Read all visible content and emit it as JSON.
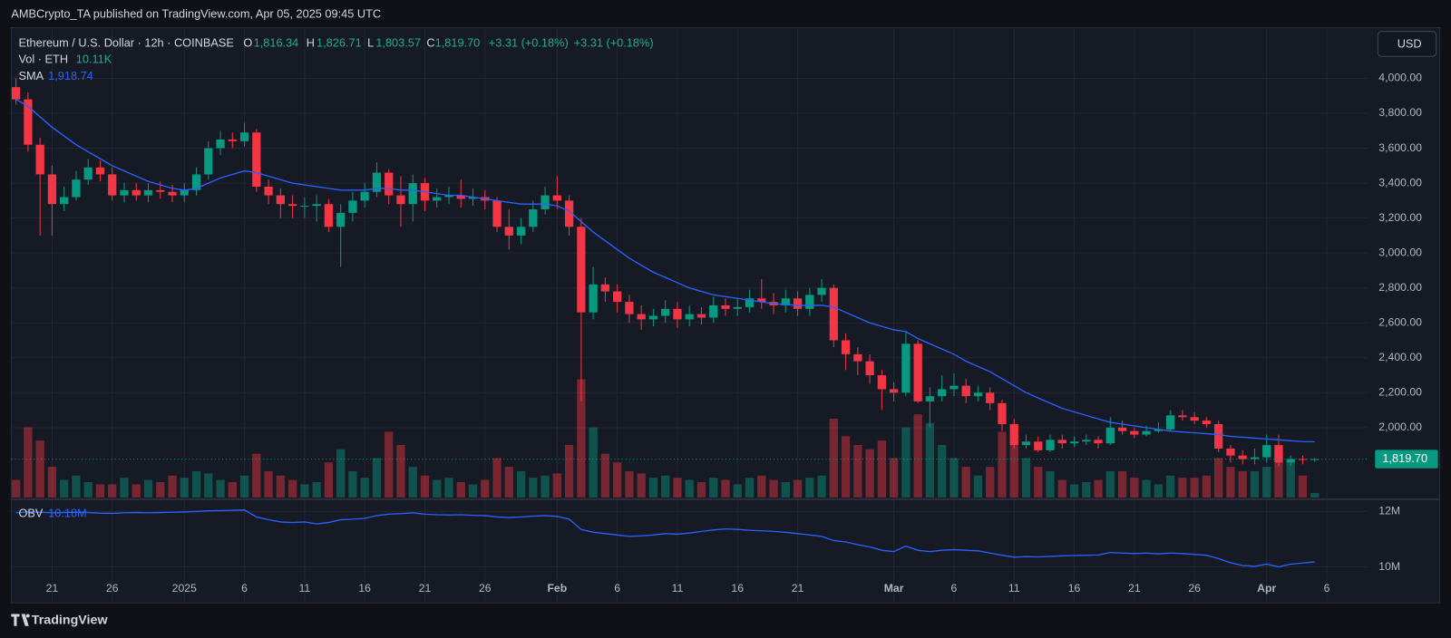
{
  "header": {
    "published": "AMBCrypto_TA published on TradingView.com, Apr 05, 2025 09:45 UTC",
    "symbol": "Ethereum / U.S. Dollar · 12h · COINBASE",
    "ohlc": [
      {
        "key": "O",
        "value": "1,816.34"
      },
      {
        "key": "H",
        "value": "1,826.71"
      },
      {
        "key": "L",
        "value": "1,803.57"
      },
      {
        "key": "C",
        "value": "1,819.70"
      }
    ],
    "change": "+3.31 (+0.18%)",
    "change_repeat": "+3.31 (+0.18%)",
    "volume_value": "10.11K",
    "sma_value": "1,918.74",
    "obv_value": "10.18M",
    "currency": "USD",
    "footer": "TradingView"
  },
  "chart_data": [
    {
      "type": "candlestick",
      "up_color": "#089981",
      "down_color": "#f23645",
      "open": [
        3950,
        3880,
        3620,
        3450,
        3280,
        3320,
        3420,
        3490,
        3450,
        3330,
        3360,
        3330,
        3360,
        3350,
        3330,
        3360,
        3450,
        3600,
        3650,
        3640,
        3690,
        3380,
        3330,
        3280,
        3270,
        3270,
        3280,
        3150,
        3230,
        3300,
        3350,
        3460,
        3330,
        3280,
        3400,
        3300,
        3320,
        3330,
        3310,
        3320,
        3300,
        3150,
        3100,
        3150,
        3250,
        3330,
        3300,
        3150,
        2660,
        2820,
        2780,
        2720,
        2650,
        2620,
        2640,
        2680,
        2620,
        2650,
        2630,
        2700,
        2680,
        2690,
        2740,
        2720,
        2700,
        2740,
        2680,
        2760,
        2800,
        2500,
        2420,
        2380,
        2300,
        2220,
        2200,
        2480,
        2150,
        2180,
        2220,
        2240,
        2180,
        2200,
        2140,
        2020,
        1900,
        1920,
        1870,
        1930,
        1910,
        1920,
        1930,
        1910,
        2000,
        1980,
        1960,
        1980,
        1990,
        2070,
        2060,
        2040,
        2020,
        1880,
        1840,
        1820,
        1830,
        1900,
        1800,
        1820,
        1816.34
      ],
      "high": [
        4000,
        3920,
        3660,
        3500,
        3380,
        3470,
        3540,
        3530,
        3490,
        3400,
        3400,
        3400,
        3410,
        3390,
        3400,
        3490,
        3640,
        3700,
        3690,
        3745,
        3710,
        3420,
        3370,
        3330,
        3320,
        3330,
        3310,
        3280,
        3350,
        3400,
        3520,
        3480,
        3440,
        3450,
        3430,
        3370,
        3380,
        3420,
        3370,
        3360,
        3320,
        3250,
        3200,
        3300,
        3380,
        3440,
        3330,
        3200,
        2920,
        2860,
        2820,
        2760,
        2700,
        2680,
        2730,
        2720,
        2700,
        2690,
        2750,
        2740,
        2740,
        2790,
        2850,
        2770,
        2790,
        2780,
        2800,
        2850,
        2820,
        2540,
        2460,
        2420,
        2330,
        2260,
        2550,
        2500,
        2230,
        2300,
        2310,
        2280,
        2240,
        2230,
        2160,
        2050,
        1960,
        1950,
        1960,
        1960,
        1950,
        1960,
        1950,
        2060,
        2040,
        2000,
        2010,
        2030,
        2100,
        2100,
        2090,
        2060,
        2040,
        1900,
        1870,
        1880,
        1960,
        1960,
        1840,
        1840,
        1826.71
      ],
      "low": [
        3850,
        3580,
        3100,
        3100,
        3240,
        3300,
        3390,
        3410,
        3300,
        3290,
        3300,
        3290,
        3310,
        3290,
        3290,
        3330,
        3420,
        3560,
        3600,
        3610,
        3350,
        3280,
        3200,
        3200,
        3200,
        3180,
        3120,
        2920,
        3180,
        3260,
        3320,
        3280,
        3150,
        3180,
        3240,
        3260,
        3280,
        3260,
        3270,
        3250,
        3120,
        3020,
        3050,
        3120,
        3220,
        3250,
        3100,
        2150,
        2620,
        2720,
        2660,
        2600,
        2560,
        2580,
        2600,
        2570,
        2580,
        2590,
        2600,
        2640,
        2640,
        2660,
        2680,
        2650,
        2660,
        2640,
        2640,
        2720,
        2460,
        2330,
        2300,
        2250,
        2100,
        2150,
        2180,
        2140,
        2000,
        2150,
        2180,
        2140,
        2150,
        2100,
        1980,
        1880,
        1880,
        1860,
        1860,
        1880,
        1890,
        1900,
        1880,
        1900,
        1960,
        1940,
        1950,
        1970,
        1980,
        2040,
        2020,
        2000,
        1860,
        1800,
        1790,
        1790,
        1800,
        1780,
        1780,
        1790,
        1803.57
      ],
      "close": [
        3880,
        3620,
        3450,
        3280,
        3320,
        3420,
        3490,
        3450,
        3330,
        3360,
        3330,
        3360,
        3350,
        3330,
        3360,
        3450,
        3600,
        3650,
        3640,
        3690,
        3380,
        3330,
        3280,
        3270,
        3270,
        3280,
        3150,
        3230,
        3300,
        3350,
        3460,
        3330,
        3280,
        3400,
        3300,
        3320,
        3330,
        3310,
        3320,
        3300,
        3150,
        3100,
        3150,
        3250,
        3330,
        3300,
        3150,
        2660,
        2820,
        2780,
        2720,
        2650,
        2620,
        2640,
        2680,
        2620,
        2650,
        2630,
        2700,
        2680,
        2690,
        2740,
        2720,
        2700,
        2740,
        2680,
        2760,
        2800,
        2500,
        2420,
        2380,
        2300,
        2220,
        2200,
        2480,
        2150,
        2180,
        2220,
        2240,
        2180,
        2200,
        2140,
        2020,
        1900,
        1920,
        1870,
        1930,
        1910,
        1920,
        1930,
        1910,
        2000,
        1980,
        1960,
        1980,
        1990,
        2070,
        2060,
        2040,
        2020,
        1880,
        1840,
        1820,
        1830,
        1900,
        1800,
        1820,
        1815,
        1819.7
      ],
      "volume_name": "Vol · ETH",
      "volume": [
        40,
        160,
        130,
        70,
        40,
        50,
        35,
        30,
        30,
        45,
        30,
        40,
        35,
        50,
        45,
        60,
        55,
        40,
        35,
        50,
        100,
        60,
        50,
        40,
        30,
        35,
        80,
        110,
        60,
        45,
        90,
        150,
        120,
        70,
        50,
        40,
        45,
        35,
        30,
        40,
        90,
        70,
        60,
        45,
        50,
        55,
        120,
        270,
        160,
        100,
        80,
        60,
        55,
        45,
        50,
        45,
        40,
        35,
        45,
        40,
        30,
        45,
        50,
        40,
        35,
        40,
        45,
        50,
        180,
        140,
        120,
        110,
        130,
        90,
        160,
        190,
        170,
        120,
        90,
        70,
        50,
        70,
        150,
        140,
        90,
        70,
        60,
        40,
        30,
        35,
        40,
        60,
        60,
        45,
        40,
        30,
        50,
        45,
        45,
        50,
        90,
        70,
        60,
        60,
        70,
        110,
        80,
        50,
        10.11
      ],
      "volume_ylim": [
        0,
        600
      ],
      "series": [
        {
          "name": "SMA",
          "color": "#2962ff",
          "values": [
            3880,
            3840,
            3780,
            3720,
            3670,
            3620,
            3580,
            3540,
            3500,
            3470,
            3440,
            3410,
            3390,
            3370,
            3360,
            3370,
            3400,
            3430,
            3450,
            3470,
            3460,
            3440,
            3420,
            3400,
            3390,
            3380,
            3370,
            3360,
            3360,
            3360,
            3370,
            3370,
            3360,
            3360,
            3350,
            3340,
            3330,
            3330,
            3320,
            3310,
            3300,
            3290,
            3280,
            3280,
            3280,
            3270,
            3240,
            3180,
            3120,
            3070,
            3020,
            2970,
            2930,
            2890,
            2860,
            2830,
            2800,
            2780,
            2760,
            2750,
            2740,
            2730,
            2720,
            2710,
            2705,
            2700,
            2700,
            2700,
            2690,
            2660,
            2630,
            2600,
            2580,
            2560,
            2550,
            2510,
            2480,
            2450,
            2420,
            2380,
            2350,
            2320,
            2280,
            2240,
            2200,
            2170,
            2140,
            2110,
            2090,
            2070,
            2050,
            2030,
            2020,
            2010,
            2000,
            1990,
            1980,
            1975,
            1970,
            1965,
            1960,
            1950,
            1945,
            1940,
            1935,
            1930,
            1925,
            1920,
            1918.74
          ]
        }
      ],
      "last_price_label": "1,819.70",
      "xlim": [
        -0.4,
        112.4
      ],
      "xticks": [
        {
          "value": 3,
          "label": "21"
        },
        {
          "value": 8,
          "label": "26"
        },
        {
          "value": 14,
          "label": "2025"
        },
        {
          "value": 19,
          "label": "6"
        },
        {
          "value": 24,
          "label": "11"
        },
        {
          "value": 29,
          "label": "16"
        },
        {
          "value": 34,
          "label": "21"
        },
        {
          "value": 39,
          "label": "26"
        },
        {
          "value": 45,
          "label": "Feb"
        },
        {
          "value": 50,
          "label": "6"
        },
        {
          "value": 55,
          "label": "11"
        },
        {
          "value": 60,
          "label": "16"
        },
        {
          "value": 65,
          "label": "21"
        },
        {
          "value": 73,
          "label": "Mar"
        },
        {
          "value": 78,
          "label": "6"
        },
        {
          "value": 83,
          "label": "11"
        },
        {
          "value": 88,
          "label": "16"
        },
        {
          "value": 93,
          "label": "21"
        },
        {
          "value": 98,
          "label": "26"
        },
        {
          "value": 104,
          "label": "Apr"
        },
        {
          "value": 109,
          "label": "6"
        }
      ],
      "ylim": [
        1600,
        4290
      ],
      "yticks": [
        {
          "value": 2000,
          "label": "2,000.00"
        },
        {
          "value": 2200,
          "label": "2,200.00"
        },
        {
          "value": 2400,
          "label": "2,400.00"
        },
        {
          "value": 2600,
          "label": "2,600.00"
        },
        {
          "value": 2800,
          "label": "2,800.00"
        },
        {
          "value": 3000,
          "label": "3,000.00"
        },
        {
          "value": 3200,
          "label": "3,200.00"
        },
        {
          "value": 3400,
          "label": "3,400.00"
        },
        {
          "value": 3600,
          "label": "3,600.00"
        },
        {
          "value": 3800,
          "label": "3,800.00"
        },
        {
          "value": 4000,
          "label": "4,000.00"
        }
      ],
      "grid": true
    },
    {
      "type": "line",
      "series": [
        {
          "name": "OBV",
          "color": "#2962ff",
          "values": [
            11.95,
            11.98,
            11.97,
            11.95,
            11.96,
            11.97,
            11.96,
            11.94,
            11.93,
            11.95,
            11.96,
            11.95,
            11.96,
            11.97,
            11.98,
            12.0,
            12.02,
            12.03,
            12.04,
            12.05,
            11.8,
            11.7,
            11.62,
            11.6,
            11.62,
            11.55,
            11.6,
            11.7,
            11.72,
            11.75,
            11.85,
            11.9,
            11.92,
            11.95,
            11.9,
            11.88,
            11.87,
            11.88,
            11.86,
            11.85,
            11.8,
            11.78,
            11.8,
            11.83,
            11.85,
            11.82,
            11.72,
            11.35,
            11.25,
            11.2,
            11.15,
            11.1,
            11.12,
            11.15,
            11.2,
            11.18,
            11.22,
            11.28,
            11.33,
            11.37,
            11.35,
            11.32,
            11.3,
            11.28,
            11.25,
            11.2,
            11.15,
            11.1,
            10.95,
            10.9,
            10.8,
            10.72,
            10.6,
            10.55,
            10.75,
            10.6,
            10.55,
            10.6,
            10.62,
            10.6,
            10.58,
            10.5,
            10.42,
            10.35,
            10.37,
            10.36,
            10.38,
            10.4,
            10.41,
            10.42,
            10.43,
            10.52,
            10.5,
            10.48,
            10.5,
            10.47,
            10.5,
            10.48,
            10.45,
            10.42,
            10.3,
            10.15,
            10.05,
            10.02,
            10.1,
            10.0,
            10.1,
            10.14,
            10.18
          ]
        }
      ],
      "xlim": [
        -0.4,
        112.4
      ],
      "ylim": [
        8.77,
        12.37
      ],
      "yticks": [
        {
          "value": 10,
          "label": "10M"
        },
        {
          "value": 12,
          "label": "12M"
        }
      ],
      "grid": true
    }
  ]
}
